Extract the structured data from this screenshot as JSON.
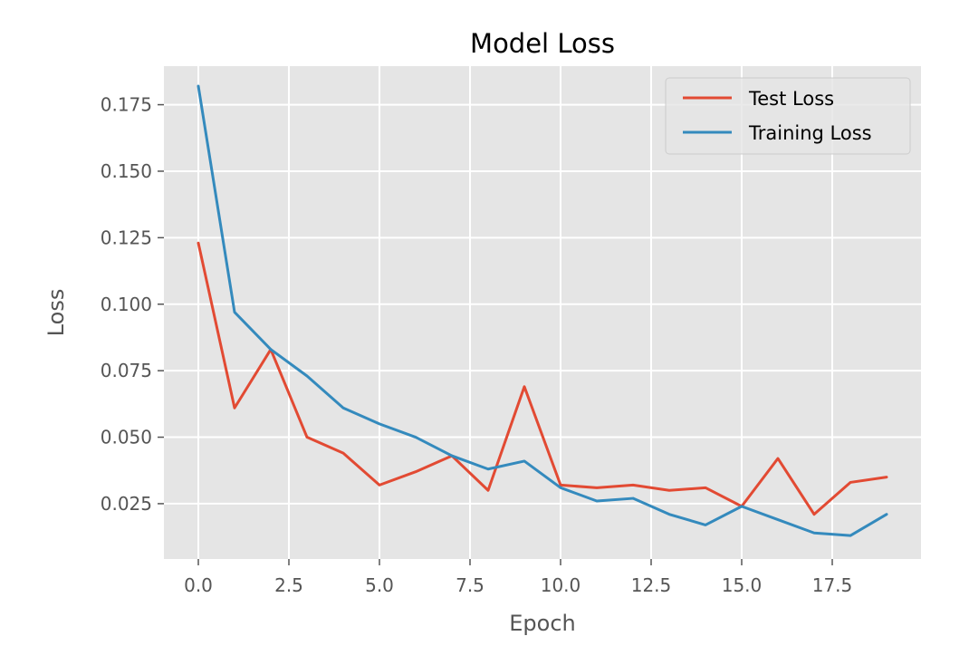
{
  "chart_data": {
    "type": "line",
    "title": "Model Loss",
    "xlabel": "Epoch",
    "ylabel": "Loss",
    "xlim": [
      -0.95,
      19.95
    ],
    "ylim": [
      0.0042,
      0.1895
    ],
    "xticks": [
      0.0,
      2.5,
      5.0,
      7.5,
      10.0,
      12.5,
      15.0,
      17.5
    ],
    "xtick_labels": [
      "0.0",
      "2.5",
      "5.0",
      "7.5",
      "10.0",
      "12.5",
      "15.0",
      "17.5"
    ],
    "yticks": [
      0.025,
      0.05,
      0.075,
      0.1,
      0.125,
      0.15,
      0.175
    ],
    "ytick_labels": [
      "0.025",
      "0.050",
      "0.075",
      "0.100",
      "0.125",
      "0.150",
      "0.175"
    ],
    "grid": true,
    "legend_position": "top-right",
    "x": [
      0,
      1,
      2,
      3,
      4,
      5,
      6,
      7,
      8,
      9,
      10,
      11,
      12,
      13,
      14,
      15,
      16,
      17,
      18,
      19
    ],
    "series": [
      {
        "name": "Test Loss",
        "color": "#E24A33",
        "values": [
          0.123,
          0.061,
          0.083,
          0.05,
          0.044,
          0.032,
          0.037,
          0.043,
          0.03,
          0.069,
          0.032,
          0.031,
          0.032,
          0.03,
          0.031,
          0.024,
          0.042,
          0.021,
          0.033,
          0.035
        ]
      },
      {
        "name": "Training Loss",
        "color": "#348ABD",
        "values": [
          0.182,
          0.097,
          0.083,
          0.073,
          0.061,
          0.055,
          0.05,
          0.043,
          0.038,
          0.041,
          0.031,
          0.026,
          0.027,
          0.021,
          0.017,
          0.024,
          0.019,
          0.014,
          0.013,
          0.021
        ]
      }
    ]
  }
}
